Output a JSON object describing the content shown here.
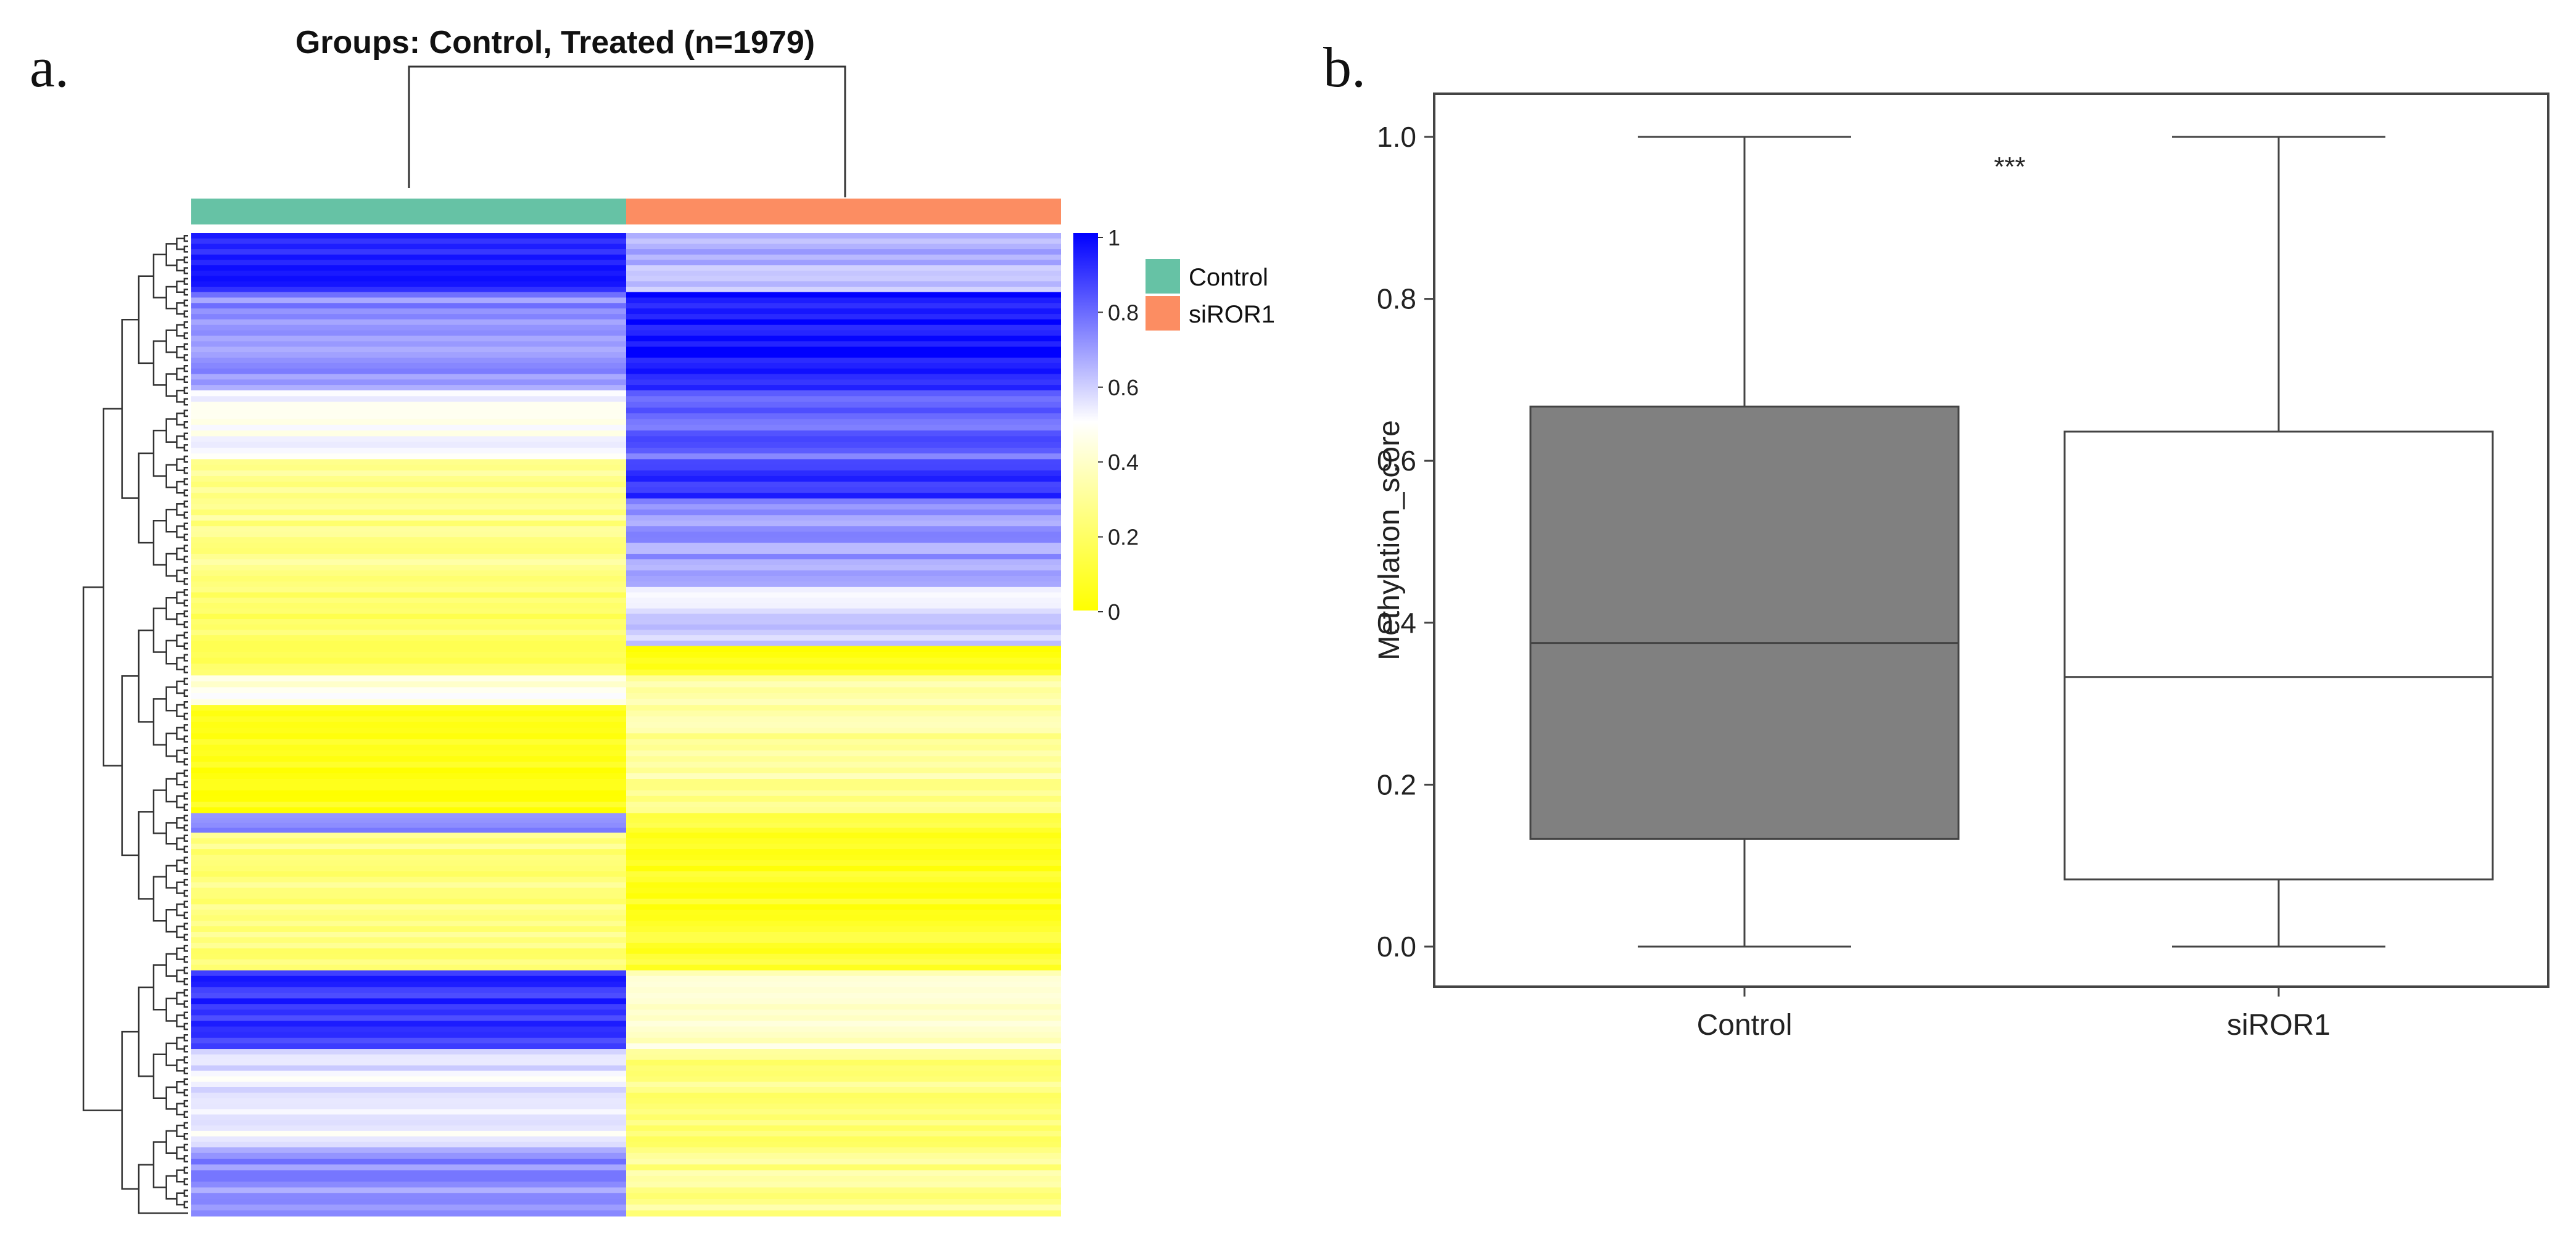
{
  "figure": {
    "panel_a_label": "a.",
    "panel_b_label": "b."
  },
  "chart_data": [
    {
      "type": "heatmap",
      "title": "Groups: Control, Treated (n=1979)",
      "columns": [
        "Control",
        "siROR1"
      ],
      "legend": {
        "entries": [
          {
            "label": "Control",
            "color": "#66c2a5"
          },
          {
            "label": "siROR1",
            "color": "#fc8d62"
          }
        ],
        "placement": "right"
      },
      "colorbar": {
        "ticks": [
          "1",
          "0.8",
          "0.6",
          "0.4",
          "0.2",
          "0"
        ],
        "range": [
          0,
          1
        ],
        "low_color": "#ffff00",
        "mid_color": "#ffffff",
        "high_color": "#0000ff"
      },
      "rows_n": 1979,
      "cluster_blocks": [
        {
          "fraction": 0.06,
          "values": [
            0.95,
            0.65
          ]
        },
        {
          "fraction": 0.1,
          "values": [
            0.72,
            0.95
          ]
        },
        {
          "fraction": 0.07,
          "values": [
            0.48,
            0.8
          ]
        },
        {
          "fraction": 0.04,
          "values": [
            0.3,
            0.88
          ]
        },
        {
          "fraction": 0.09,
          "values": [
            0.28,
            0.7
          ]
        },
        {
          "fraction": 0.06,
          "values": [
            0.22,
            0.58
          ]
        },
        {
          "fraction": 0.03,
          "values": [
            0.22,
            0.05
          ]
        },
        {
          "fraction": 0.03,
          "values": [
            0.45,
            0.3
          ]
        },
        {
          "fraction": 0.11,
          "values": [
            0.03,
            0.3
          ]
        },
        {
          "fraction": 0.02,
          "values": [
            0.75,
            0.1
          ]
        },
        {
          "fraction": 0.14,
          "values": [
            0.25,
            0.08
          ]
        },
        {
          "fraction": 0.08,
          "values": [
            0.9,
            0.4
          ]
        },
        {
          "fraction": 0.1,
          "values": [
            0.55,
            0.25
          ]
        },
        {
          "fraction": 0.07,
          "values": [
            0.72,
            0.28
          ]
        }
      ]
    },
    {
      "type": "boxplot",
      "title": "",
      "xlabel": "",
      "ylabel": "Methylation_score",
      "categories": [
        "Control",
        "siROR1"
      ],
      "ylim": [
        -0.05,
        1.05
      ],
      "yticks": [
        "0.0",
        "0.2",
        "0.4",
        "0.6",
        "0.8",
        "1.0"
      ],
      "series": [
        {
          "name": "Control",
          "min": 0.0,
          "q1": 0.133,
          "median": 0.375,
          "q3": 0.667,
          "max": 1.0,
          "fill": "#808080"
        },
        {
          "name": "siROR1",
          "min": 0.0,
          "q1": 0.083,
          "median": 0.333,
          "q3": 0.636,
          "max": 1.0,
          "fill": "#ffffff"
        }
      ],
      "annotation": "***"
    }
  ]
}
